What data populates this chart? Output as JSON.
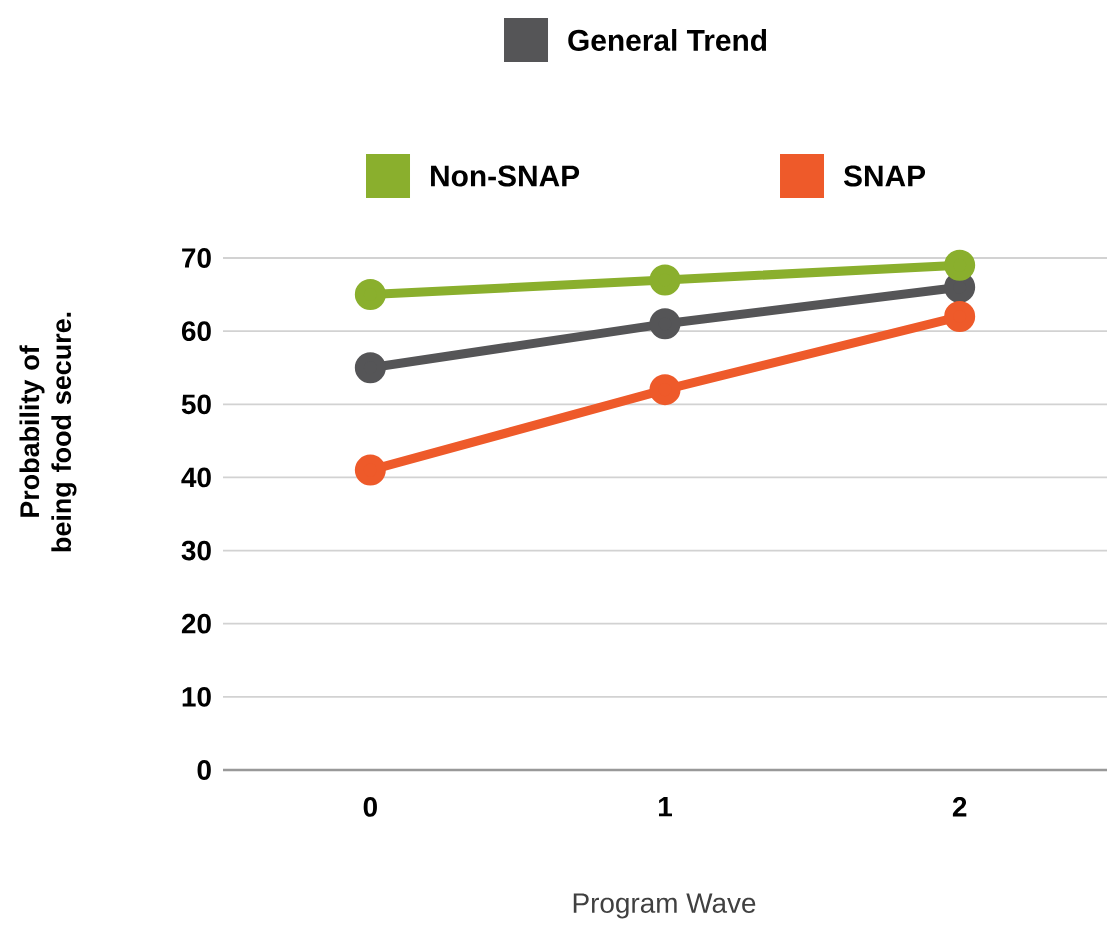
{
  "chart_data": {
    "type": "line",
    "xlabel": "Program Wave",
    "ylabel": "Probability of being food secure.",
    "categories": [
      "0",
      "1",
      "2"
    ],
    "series": [
      {
        "name": "General Trend",
        "color": "#555557",
        "values": [
          55,
          61,
          66
        ]
      },
      {
        "name": "Non-SNAP",
        "color": "#8aaf2d",
        "values": [
          65,
          67,
          69
        ]
      },
      {
        "name": "SNAP",
        "color": "#ee5a2a",
        "values": [
          41,
          52,
          62
        ]
      }
    ],
    "ylim": [
      0,
      70
    ],
    "yticks": [
      0,
      10,
      20,
      30,
      40,
      50,
      60,
      70
    ],
    "grid": "y",
    "legend": "top",
    "marker": "circle",
    "line_style": "solid"
  }
}
